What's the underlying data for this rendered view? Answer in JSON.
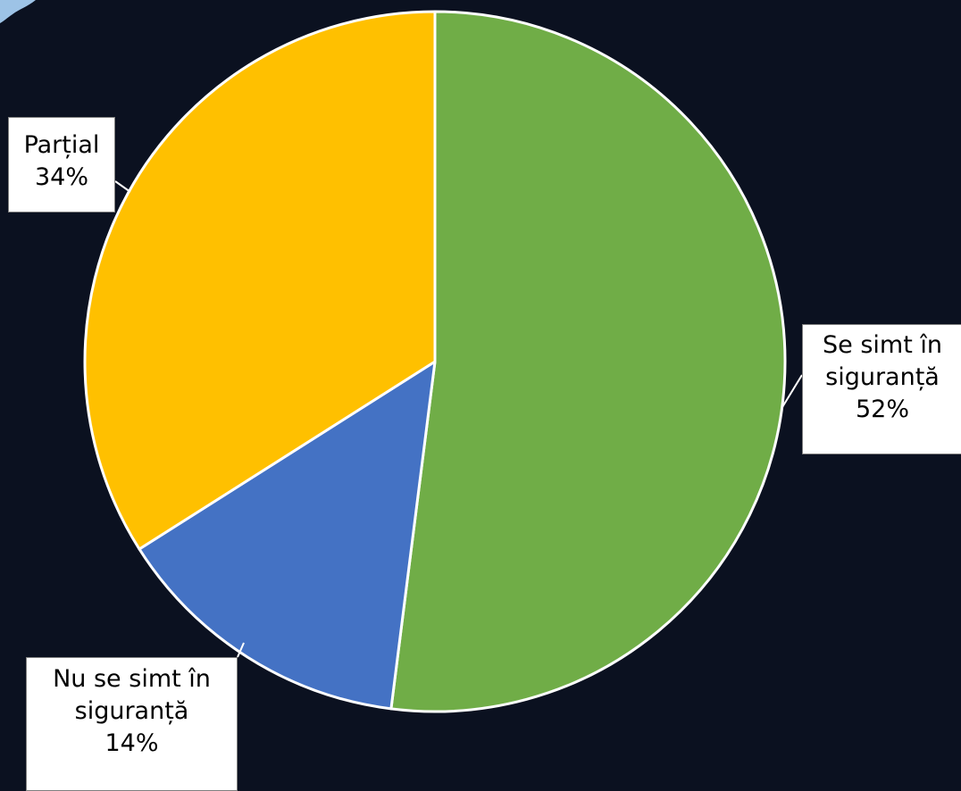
{
  "chart_data": {
    "type": "pie",
    "title": "",
    "slices": [
      {
        "label_lines": [
          "Se simt în",
          "siguranță"
        ],
        "percent_label": "52%",
        "value": 52,
        "color": "#70ad47"
      },
      {
        "label_lines": [
          "Nu se simt în",
          "siguranță"
        ],
        "percent_label": "14%",
        "value": 14,
        "color": "#4472c4"
      },
      {
        "label_lines": [
          "Parțial"
        ],
        "percent_label": "34%",
        "value": 34,
        "color": "#ffc000"
      }
    ],
    "legend": "none",
    "start_angle": "12 o'clock",
    "direction": "clockwise"
  }
}
